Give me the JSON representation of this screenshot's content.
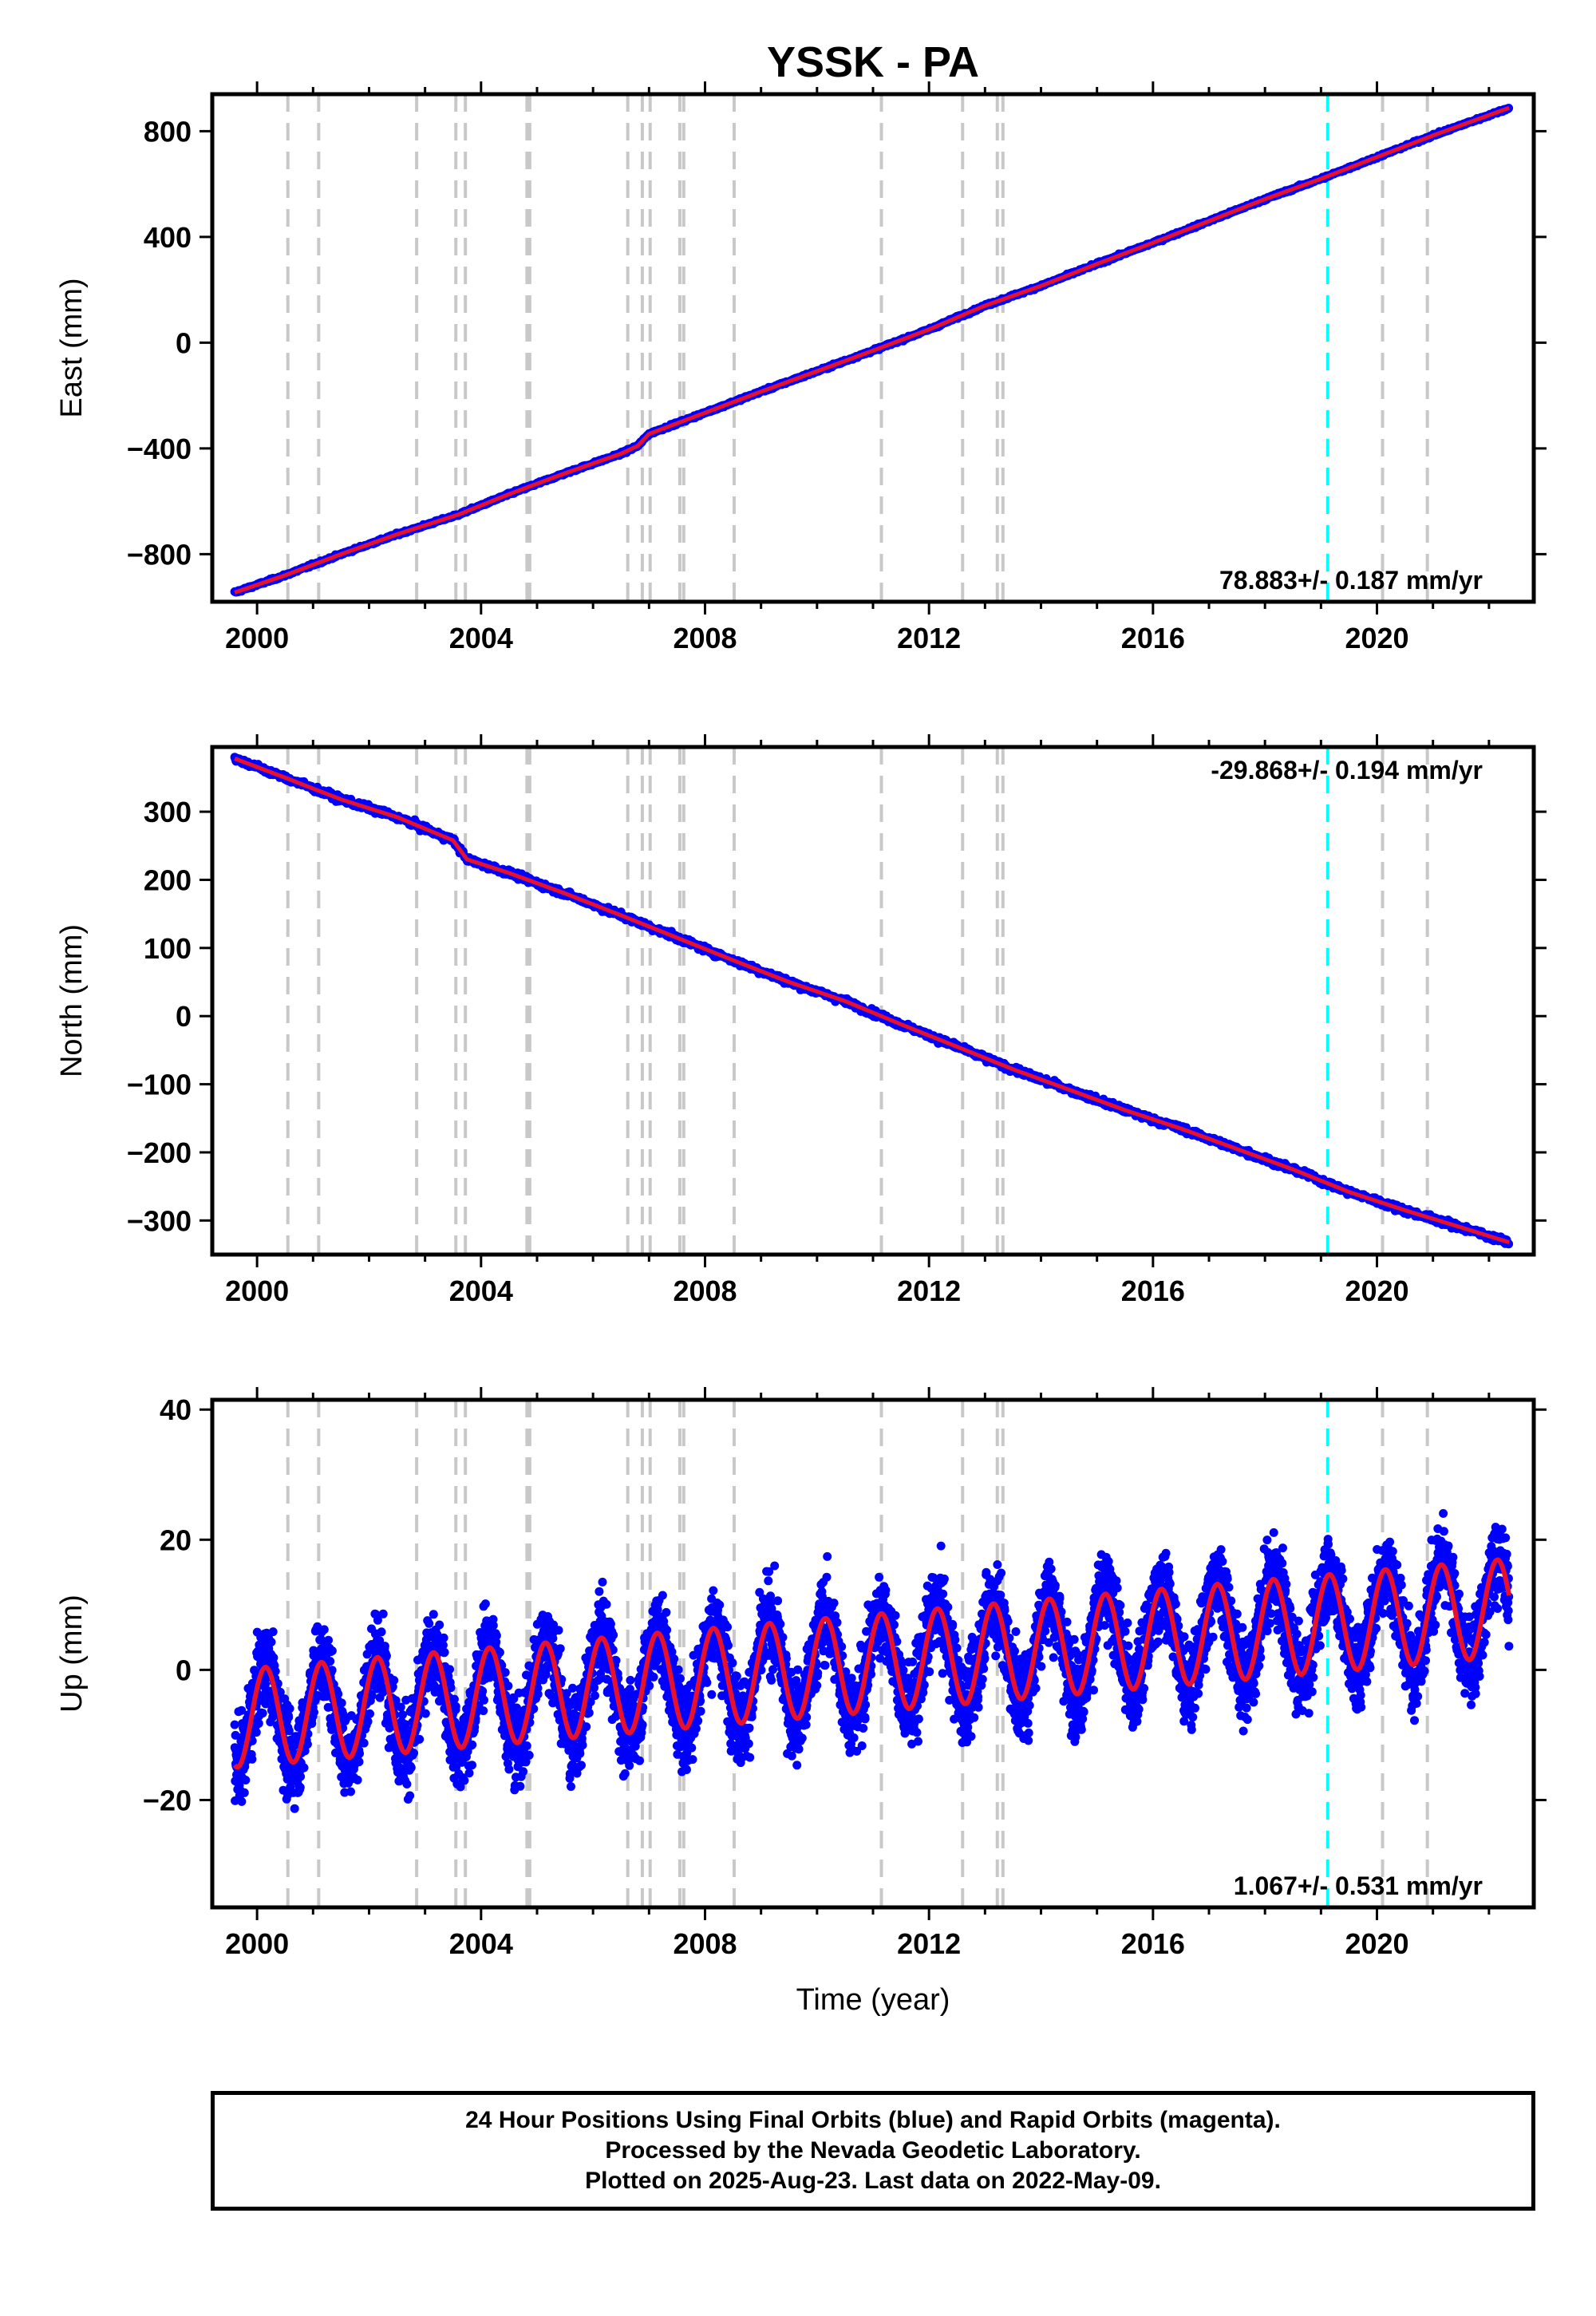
{
  "title": "YSSK - PA",
  "xlabel": "Time (year)",
  "footer": {
    "line1": "24 Hour Positions Using Final Orbits (blue) and Rapid Orbits (magenta).",
    "line2": "Processed by the Nevada Geodetic Laboratory.",
    "line3": "Plotted on 2025-Aug-23. Last data on 2022-May-09."
  },
  "colors": {
    "data": "#0000ff",
    "fit": "#e8102a",
    "equipment_change": "#c8c8c8",
    "earthquake": "#00ffff"
  },
  "chart_data": [
    {
      "type": "scatter",
      "component": "east",
      "ylabel": "East (mm)",
      "xlim": [
        1999.2,
        2022.8
      ],
      "ylim": [
        -980,
        940
      ],
      "x_ticks": [
        2000,
        2004,
        2008,
        2012,
        2016,
        2020
      ],
      "y_ticks": [
        -800,
        -400,
        0,
        400,
        800
      ],
      "y_tick_labels": [
        "−800",
        "−400",
        "0",
        "400",
        "800"
      ],
      "rate_label": "78.883+/- 0.187 mm/yr",
      "rate_position": "bottom-right",
      "series": [
        {
          "x": [
            1999.6,
            2000.5,
            2001.5,
            2002.5,
            2003.6,
            2004.5,
            2005.5,
            2006.5,
            2006.8,
            2007.0,
            2008.0,
            2009.0,
            2010.0,
            2011.0,
            2012.0,
            2013.0,
            2014.0,
            2015.0,
            2016.0,
            2017.0,
            2018.0,
            2019.0,
            2020.0,
            2021.0,
            2022.36
          ],
          "y": [
            -945,
            -880,
            -800,
            -725,
            -650,
            -573,
            -494,
            -420,
            -390,
            -345,
            -265,
            -185,
            -108,
            -30,
            50,
            140,
            215,
            298,
            378,
            460,
            543,
            620,
            702,
            784,
            888
          ]
        }
      ]
    },
    {
      "type": "scatter",
      "component": "north",
      "ylabel": "North (mm)",
      "xlim": [
        1999.2,
        2022.8
      ],
      "ylim": [
        -350,
        395
      ],
      "x_ticks": [
        2000,
        2004,
        2008,
        2012,
        2016,
        2020
      ],
      "y_ticks": [
        -300,
        -200,
        -100,
        0,
        100,
        200,
        300
      ],
      "y_tick_labels": [
        "−300",
        "−200",
        "−100",
        "0",
        "100",
        "200",
        "300"
      ],
      "rate_label": "-29.868+/- 0.194 mm/yr",
      "rate_position": "top-right",
      "series": [
        {
          "x": [
            1999.6,
            2000.5,
            2001.5,
            2002.5,
            2003.5,
            2003.75,
            2004.5,
            2005.5,
            2006.5,
            2007.5,
            2008.5,
            2009.5,
            2010.5,
            2011.5,
            2012.5,
            2013.5,
            2014.5,
            2015.5,
            2016.5,
            2017.5,
            2018.5,
            2019.5,
            2020.5,
            2021.5,
            2022.36
          ],
          "y": [
            378,
            350,
            318,
            292,
            258,
            230,
            210,
            180,
            148,
            115,
            82,
            50,
            22,
            -12,
            -45,
            -78,
            -108,
            -138,
            -165,
            -195,
            -225,
            -258,
            -285,
            -310,
            -332
          ]
        }
      ]
    },
    {
      "type": "scatter",
      "component": "up",
      "ylabel": "Up (mm)",
      "xlim": [
        1999.2,
        2022.8
      ],
      "ylim": [
        -36.5,
        41.5
      ],
      "x_ticks": [
        2000,
        2004,
        2008,
        2012,
        2016,
        2020
      ],
      "y_ticks": [
        -20,
        0,
        20,
        40
      ],
      "y_tick_labels": [
        "−20",
        "0",
        "20",
        "40"
      ],
      "rate_label": "1.067+/- 0.531 mm/yr",
      "rate_position": "bottom-right",
      "series": [
        {
          "start": 1999.6,
          "end": 2022.36,
          "trend_start": -7.5,
          "trend_rate": 0.75,
          "annual_amplitude": 7.5,
          "annual_phase_year": 0.55,
          "scatter_sd": 3.2
        }
      ]
    }
  ],
  "events": {
    "equipment_changes": [
      2000.55,
      2001.1,
      2002.85,
      2003.55,
      2003.72,
      2004.82,
      2004.87,
      2006.62,
      2006.88,
      2007.02,
      2007.55,
      2007.62,
      2008.52,
      2011.15,
      2012.6,
      2013.22,
      2013.32,
      2020.1,
      2020.9
    ],
    "earthquakes": [
      2019.12
    ]
  }
}
